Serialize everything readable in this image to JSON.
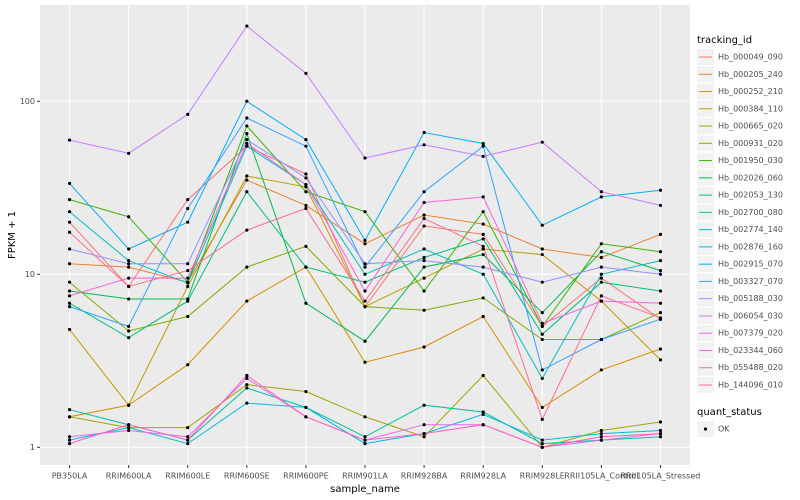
{
  "chart_data": {
    "type": "line",
    "x_label": "sample_name",
    "y_label": "FPKM + 1",
    "categories": [
      "PB350LA",
      "RRIM600LA",
      "RRIM600LE",
      "RRIM600SE",
      "RRIM600PE",
      "RRIM901LA",
      "RRIM928BA",
      "RRIM928LA",
      "RRIM928LE",
      "RRII105LA_Control",
      "RRII105LA_Stressed"
    ],
    "log_y": true,
    "ylim": [
      0.79,
      360
    ],
    "yticks": [
      1,
      10,
      100
    ],
    "grid": true,
    "legend_title": "tracking_id",
    "legend_position": "right",
    "point_legend": {
      "title": "quant_status",
      "labels": [
        "OK"
      ],
      "color": "#000000"
    },
    "series": [
      {
        "name": "Hb_000049_090",
        "color": "#F8766D",
        "values": [
          20,
          8.5,
          27,
          55,
          38,
          6.5,
          19,
          17,
          5,
          9.5,
          5.5
        ]
      },
      {
        "name": "Hb_000205_240",
        "color": "#EA8331",
        "values": [
          11.5,
          11,
          9,
          35,
          25,
          15,
          22,
          19.5,
          14,
          12.5,
          17
        ]
      },
      {
        "name": "Hb_000252_210",
        "color": "#D89000",
        "values": [
          1.5,
          1.75,
          3,
          7,
          11,
          3.1,
          3.8,
          5.7,
          1.7,
          2.8,
          3.7
        ]
      },
      {
        "name": "Hb_000384_110",
        "color": "#C09B00",
        "values": [
          4.8,
          1.75,
          8.5,
          37,
          32,
          6.5,
          9.5,
          14,
          13,
          7,
          3.2
        ]
      },
      {
        "name": "Hb_000665_020",
        "color": "#A3A500",
        "values": [
          1.5,
          1.3,
          1.3,
          2.3,
          2.1,
          1.5,
          1.15,
          2.6,
          1,
          1.25,
          1.4
        ]
      },
      {
        "name": "Hb_000931_020",
        "color": "#7CAE00",
        "values": [
          9,
          4.7,
          5.7,
          11,
          14.5,
          6.5,
          6.2,
          7.3,
          4.2,
          4.2,
          6
        ]
      },
      {
        "name": "Hb_001950_030",
        "color": "#39B600",
        "values": [
          27,
          21.5,
          9,
          72,
          30,
          23,
          8,
          23,
          5,
          15,
          13.5
        ]
      },
      {
        "name": "Hb_002026_060",
        "color": "#00BB4E",
        "values": [
          8,
          7.2,
          7.2,
          65,
          6.8,
          4.1,
          11,
          13,
          6,
          13.5,
          10.5
        ]
      },
      {
        "name": "Hb_002053_130",
        "color": "#00BF7D",
        "values": [
          6.8,
          4.3,
          7,
          30,
          11,
          9,
          12.5,
          16,
          4.5,
          9,
          8
        ]
      },
      {
        "name": "Hb_002700_080",
        "color": "#00C1A3",
        "values": [
          1.65,
          1.35,
          1.1,
          2.2,
          1.7,
          1.15,
          1.75,
          1.6,
          1.05,
          1.1,
          1.15
        ]
      },
      {
        "name": "Hb_002774_140",
        "color": "#00BFC4",
        "values": [
          23,
          12,
          8.9,
          55,
          33,
          10,
          14,
          10,
          2.5,
          10,
          12
        ]
      },
      {
        "name": "Hb_002876_160",
        "color": "#00BAE0",
        "values": [
          1.1,
          1.3,
          1.05,
          1.8,
          1.7,
          1.05,
          1.2,
          1.55,
          1.1,
          1.2,
          1.25
        ]
      },
      {
        "name": "Hb_002915_070",
        "color": "#00B0F6",
        "values": [
          33.5,
          14,
          20,
          100,
          60,
          15.7,
          66,
          57,
          19.2,
          28,
          30.6
        ]
      },
      {
        "name": "Hb_003327_070",
        "color": "#35A2FF",
        "values": [
          6.5,
          5,
          24,
          80,
          55,
          11,
          30,
          55,
          2.8,
          4.2,
          5.5
        ]
      },
      {
        "name": "Hb_005188_030",
        "color": "#9590FF",
        "values": [
          14,
          11.5,
          11.5,
          60,
          36,
          11.5,
          12,
          11,
          9,
          11,
          10
        ]
      },
      {
        "name": "Hb_006054_030",
        "color": "#C77CFF",
        "values": [
          59.6,
          50,
          84,
          272,
          145,
          47,
          56,
          48,
          58,
          30,
          25
        ]
      },
      {
        "name": "Hb_007379_020",
        "color": "#E76BF3",
        "values": [
          1.15,
          1.25,
          1.15,
          2.5,
          1.5,
          1.1,
          1.35,
          1.35,
          1,
          1.1,
          1.2
        ]
      },
      {
        "name": "Hb_023344_060",
        "color": "#FA62DB",
        "values": [
          7.5,
          9.5,
          9.5,
          57,
          33,
          8,
          26,
          28,
          5.2,
          7,
          6.8
        ]
      },
      {
        "name": "Hb_055488_020",
        "color": "#FF62BC",
        "values": [
          1.05,
          1.35,
          1.1,
          2.6,
          1.5,
          1.1,
          1.2,
          1.35,
          1,
          1.15,
          1.2
        ]
      },
      {
        "name": "Hb_144096_010",
        "color": "#FF6C91",
        "values": [
          17.5,
          8.5,
          10.5,
          18,
          24,
          7,
          21,
          14.5,
          1.45,
          7.5,
          5.6
        ]
      }
    ]
  }
}
